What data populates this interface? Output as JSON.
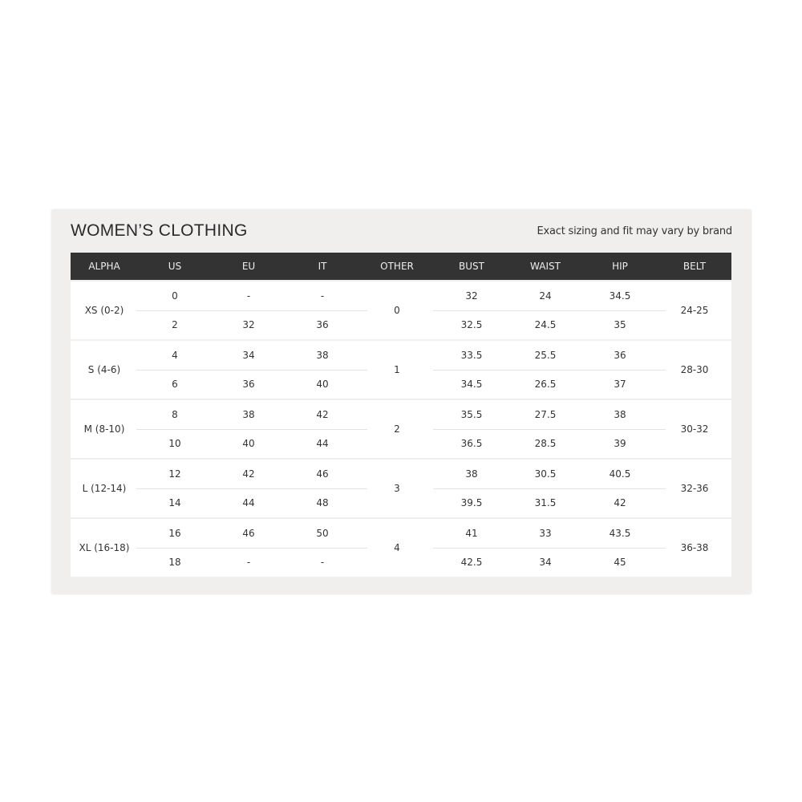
{
  "title": "WOMEN’S CLOTHING",
  "note": "Exact sizing and fit may vary by brand",
  "headers": [
    "ALPHA",
    "US",
    "EU",
    "IT",
    "OTHER",
    "BUST",
    "WAIST",
    "HIP",
    "BELT"
  ],
  "groups": [
    {
      "alpha": "XS (0-2)",
      "other": "0",
      "belt": "24-25",
      "rows": [
        {
          "us": "0",
          "eu": "-",
          "it": "-",
          "bust": "32",
          "waist": "24",
          "hip": "34.5"
        },
        {
          "us": "2",
          "eu": "32",
          "it": "36",
          "bust": "32.5",
          "waist": "24.5",
          "hip": "35"
        }
      ]
    },
    {
      "alpha": "S (4-6)",
      "other": "1",
      "belt": "28-30",
      "rows": [
        {
          "us": "4",
          "eu": "34",
          "it": "38",
          "bust": "33.5",
          "waist": "25.5",
          "hip": "36"
        },
        {
          "us": "6",
          "eu": "36",
          "it": "40",
          "bust": "34.5",
          "waist": "26.5",
          "hip": "37"
        }
      ]
    },
    {
      "alpha": "M (8-10)",
      "other": "2",
      "belt": "30-32",
      "rows": [
        {
          "us": "8",
          "eu": "38",
          "it": "42",
          "bust": "35.5",
          "waist": "27.5",
          "hip": "38"
        },
        {
          "us": "10",
          "eu": "40",
          "it": "44",
          "bust": "36.5",
          "waist": "28.5",
          "hip": "39"
        }
      ]
    },
    {
      "alpha": "L (12-14)",
      "other": "3",
      "belt": "32-36",
      "rows": [
        {
          "us": "12",
          "eu": "42",
          "it": "46",
          "bust": "38",
          "waist": "30.5",
          "hip": "40.5"
        },
        {
          "us": "14",
          "eu": "44",
          "it": "48",
          "bust": "39.5",
          "waist": "31.5",
          "hip": "42"
        }
      ]
    },
    {
      "alpha": "XL (16-18)",
      "other": "4",
      "belt": "36-38",
      "rows": [
        {
          "us": "16",
          "eu": "46",
          "it": "50",
          "bust": "41",
          "waist": "33",
          "hip": "43.5"
        },
        {
          "us": "18",
          "eu": "-",
          "it": "-",
          "bust": "42.5",
          "waist": "34",
          "hip": "45"
        }
      ]
    }
  ]
}
